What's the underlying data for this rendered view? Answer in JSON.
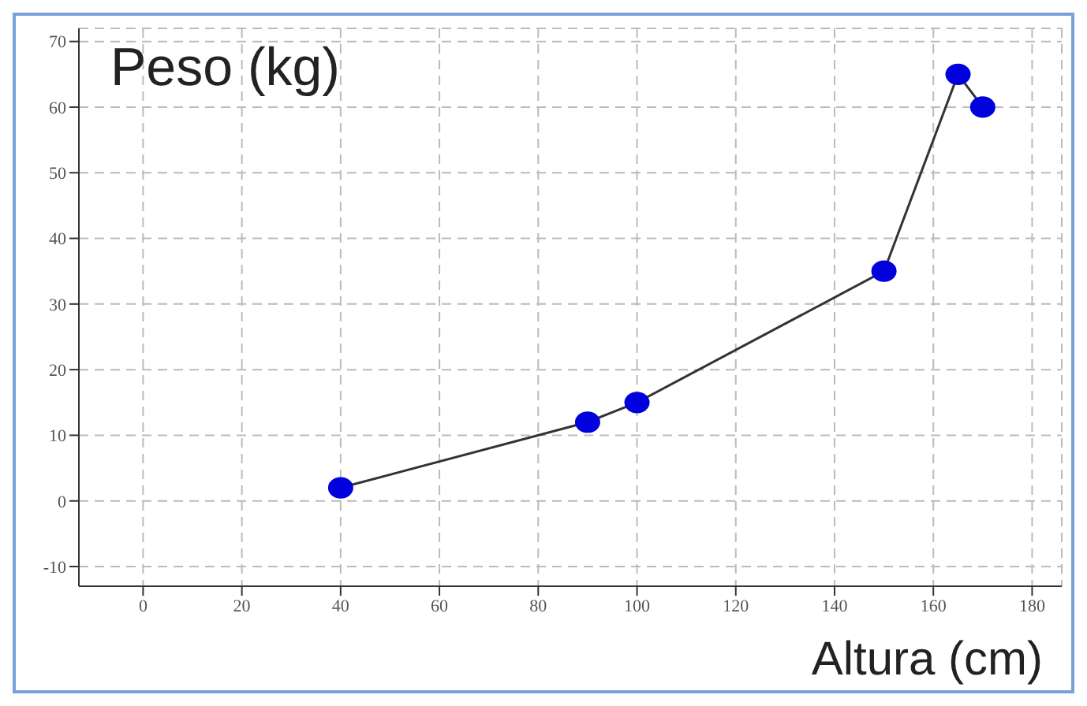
{
  "chart_data": {
    "type": "line",
    "xlabel": "Altura (cm)",
    "ylabel": "Peso (kg)",
    "x": [
      40,
      90,
      100,
      150,
      165,
      170
    ],
    "series": [
      {
        "color": "#0000dd",
        "values": [
          2,
          12,
          15,
          35,
          65,
          60
        ]
      }
    ],
    "xlim": [
      -13,
      186
    ],
    "xticks": [
      0,
      20,
      40,
      60,
      80,
      100,
      120,
      140,
      160,
      180
    ],
    "ylim": [
      -13,
      72
    ],
    "yticks": [
      -10,
      0,
      10,
      20,
      30,
      40,
      50,
      60,
      70
    ],
    "grid": true,
    "marker": "circle",
    "line_style": "solid"
  }
}
